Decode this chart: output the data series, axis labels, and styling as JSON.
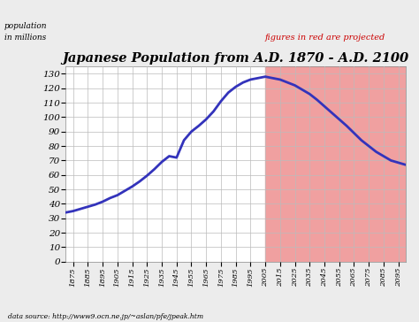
{
  "title": "Japanese Population from A.D. 1870 - A.D. 2100",
  "subtitle": "figures in red are projected",
  "ylabel_line1": "population",
  "ylabel_line2": "in millions",
  "datasource": "data source: http://www9.ocn.ne.jp/~aslan/pfe/jpeak.htm",
  "projection_start_year": 2005,
  "bg_color": "#ececec",
  "plot_bg_color": "#ffffff",
  "projected_bg_color": "#f0a0a0",
  "line_color": "#3333bb",
  "subtitle_color": "#cc0000",
  "ylim": [
    0,
    135
  ],
  "yticks": [
    0,
    10,
    20,
    30,
    40,
    50,
    60,
    70,
    80,
    90,
    100,
    110,
    120,
    130
  ],
  "xlim": [
    1870,
    2100
  ],
  "xticks": [
    1875,
    1885,
    1895,
    1905,
    1915,
    1925,
    1935,
    1945,
    1955,
    1965,
    1975,
    1985,
    1995,
    2005,
    2015,
    2025,
    2035,
    2045,
    2055,
    2065,
    2075,
    2085,
    2095
  ],
  "data_years": [
    1870,
    1875,
    1880,
    1885,
    1890,
    1895,
    1900,
    1905,
    1910,
    1915,
    1920,
    1925,
    1930,
    1935,
    1940,
    1945,
    1950,
    1955,
    1960,
    1965,
    1970,
    1975,
    1980,
    1985,
    1990,
    1995,
    2000,
    2005,
    2010,
    2015,
    2020,
    2025,
    2030,
    2035,
    2040,
    2050,
    2060,
    2070,
    2080,
    2090,
    2100
  ],
  "data_pop": [
    34,
    35,
    36.5,
    38,
    39.5,
    41.5,
    44,
    46,
    49,
    52,
    55.5,
    59.5,
    64,
    69,
    73,
    72,
    84,
    90,
    94,
    98.5,
    104,
    111,
    117,
    121,
    124,
    126,
    127,
    128,
    127,
    126,
    124,
    122,
    119,
    116,
    112,
    103,
    94,
    84,
    76,
    70,
    67
  ]
}
